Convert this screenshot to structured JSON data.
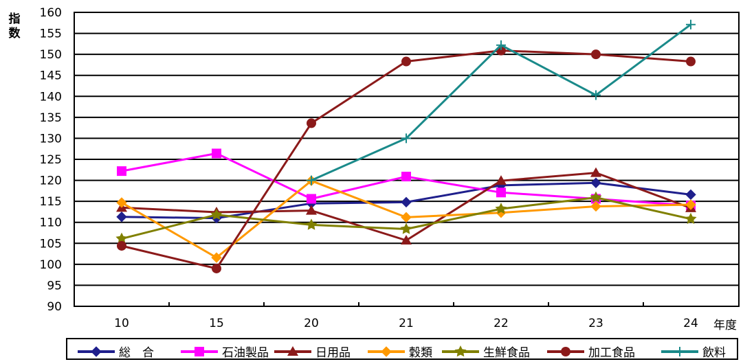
{
  "chart_data": {
    "type": "line",
    "title": "",
    "ylabel": "指数",
    "xlabel": "年度",
    "categories": [
      "10",
      "15",
      "20",
      "21",
      "22",
      "23",
      "24"
    ],
    "ylim": [
      90,
      160
    ],
    "yticks": [
      90,
      95,
      100,
      105,
      110,
      115,
      120,
      125,
      130,
      135,
      140,
      145,
      150,
      155,
      160
    ],
    "grid": "horizontal",
    "legend_position": "bottom",
    "series": [
      {
        "name": "総　合",
        "color": "#1f1f8c",
        "marker": "diamond",
        "values": [
          111.3,
          111.0,
          114.5,
          114.8,
          118.8,
          119.4,
          116.6
        ]
      },
      {
        "name": "石油製品",
        "color": "#ff00ff",
        "marker": "square",
        "values": [
          122.2,
          126.4,
          115.6,
          120.9,
          117.1,
          115.6,
          114.0
        ]
      },
      {
        "name": "日用品",
        "color": "#8b1a1a",
        "marker": "triangle",
        "values": [
          113.5,
          112.4,
          112.8,
          105.7,
          119.9,
          121.8,
          113.4
        ]
      },
      {
        "name": "穀類",
        "color": "#ff9900",
        "marker": "diamond",
        "values": [
          114.7,
          101.6,
          119.9,
          111.2,
          112.3,
          113.8,
          114.2
        ]
      },
      {
        "name": "生鮮食品",
        "color": "#808000",
        "marker": "star",
        "values": [
          106.1,
          111.8,
          109.4,
          108.4,
          113.2,
          115.9,
          110.8
        ]
      },
      {
        "name": "加工食品",
        "color": "#8b1a1a",
        "marker": "circle",
        "values": [
          104.4,
          99.0,
          133.6,
          148.3,
          150.9,
          150.0,
          148.3
        ]
      },
      {
        "name": "飲料",
        "color": "#1a8a8a",
        "marker": "plus",
        "values": [
          null,
          null,
          120.0,
          130.0,
          152.2,
          140.3,
          157.1
        ]
      }
    ]
  }
}
